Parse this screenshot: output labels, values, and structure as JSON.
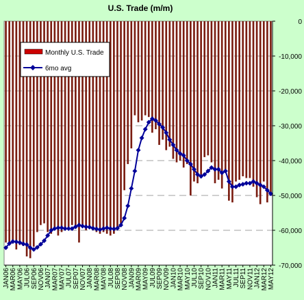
{
  "chart_data": {
    "type": "bar",
    "title": "U.S. Trade (m/m)",
    "xlabel": "",
    "ylabel": "",
    "ylim": [
      -70000,
      0
    ],
    "yticks": [
      0,
      -10000,
      -20000,
      -30000,
      -40000,
      -50000,
      -60000,
      -70000
    ],
    "ytick_labels": [
      "0",
      "-10,000",
      "-20,000",
      "-30,000",
      "-40,000",
      "-50,000",
      "-60,000",
      "-70,000"
    ],
    "legend_position": "top-left",
    "grid": {
      "horizontal_dashed": true
    },
    "colors": {
      "background": "#ccffcc",
      "plot_area": "#ffffff",
      "bar_fill": "#7a1c10",
      "legend_bar": "#cc0000",
      "line": "#000099",
      "grid": "#a0a0a0"
    },
    "categories": [
      "JAN06",
      "FEB06",
      "MAR06",
      "APR06",
      "MAY06",
      "JUN06",
      "JUL06",
      "AUG06",
      "SEP06",
      "OCT06",
      "NOV06",
      "DEC06",
      "JAN07",
      "FEB07",
      "MAR07",
      "APR07",
      "MAY07",
      "JUN07",
      "JUL07",
      "AUG07",
      "SEP07",
      "OCT07",
      "NOV07",
      "DEC07",
      "JAN08",
      "FEB08",
      "MAR08",
      "APR08",
      "MAY08",
      "JUN08",
      "JUL08",
      "AUG08",
      "SEP08",
      "OCT08",
      "NOV08",
      "DEC08",
      "JAN09",
      "FEB09",
      "MAR09",
      "APR09",
      "MAY09",
      "JUN09",
      "JUL09",
      "AUG09",
      "SEP09",
      "OCT09",
      "NOV09",
      "DEC09",
      "JAN10",
      "FEB10",
      "MAR10",
      "APR10",
      "MAY10",
      "JUN10",
      "JUL10",
      "AUG10",
      "SEP10",
      "OCT10",
      "NOV10",
      "DEC10",
      "JAN11",
      "FEB11",
      "MAR11",
      "APR11",
      "MAY11",
      "JUN11",
      "JUL11",
      "AUG11",
      "SEP11",
      "OCT11",
      "NOV11",
      "DEC11",
      "JAN12",
      "FEB12",
      "MAR12",
      "APR12",
      "MAY12"
    ],
    "x_tick_labels": [
      "JAN06",
      "MAR06",
      "MAY06",
      "JUL06",
      "SEP06",
      "NOV06",
      "JAN07",
      "MAR07",
      "MAY07",
      "JUL07",
      "SEP07",
      "NOV07",
      "JAN08",
      "MAR08",
      "MAY08",
      "JUL08",
      "SEP08",
      "NOV08",
      "JAN09",
      "MAR09",
      "MAY09",
      "JUL09",
      "SEP09",
      "NOV09",
      "JAN10",
      "MAR10",
      "MAY10",
      "JUL10",
      "SEP10",
      "NOV10",
      "JAN11",
      "MAR11",
      "MAY11",
      "JUL11",
      "SEP11",
      "NOV11",
      "JAN12",
      "MAR12",
      "MAY12"
    ],
    "series": [
      {
        "name": "Monthly U.S. Trade",
        "kind": "bar",
        "values": [
          -63500,
          -63500,
          -63800,
          -65500,
          -64200,
          -64500,
          -67500,
          -68000,
          -64700,
          -60500,
          -58500,
          -58000,
          -60500,
          -61000,
          -59500,
          -61500,
          -60500,
          -59700,
          -59000,
          -58500,
          -59500,
          -63500,
          -58500,
          -60000,
          -59000,
          -60000,
          -60500,
          -61000,
          -60500,
          -61000,
          -61500,
          -61000,
          -60000,
          -58000,
          -48500,
          -41000,
          -36500,
          -27000,
          -29000,
          -28500,
          -27000,
          -27500,
          -32000,
          -31000,
          -35500,
          -34000,
          -37000,
          -36000,
          -39500,
          -40500,
          -40000,
          -42000,
          -41000,
          -50000,
          -46000,
          -46500,
          -45000,
          -39000,
          -38500,
          -40500,
          -46500,
          -45500,
          -48000,
          -43500,
          -51500,
          -52000,
          -46000,
          -45500,
          -44500,
          -45000,
          -45000,
          -47500,
          -50500,
          -52500,
          -46000,
          -52000,
          -50000
        ]
      },
      {
        "name": "6mo avg",
        "kind": "line",
        "values": [
          -65000,
          -63800,
          -63200,
          -63300,
          -63500,
          -63900,
          -64100,
          -65000,
          -65500,
          -64900,
          -64000,
          -63000,
          -61500,
          -60000,
          -59500,
          -59300,
          -59300,
          -59500,
          -59500,
          -59500,
          -59000,
          -58500,
          -58800,
          -59000,
          -59100,
          -59400,
          -59600,
          -59800,
          -59500,
          -59300,
          -59500,
          -59600,
          -59400,
          -58500,
          -56500,
          -53000,
          -48000,
          -43000,
          -37000,
          -33500,
          -31000,
          -29000,
          -28000,
          -28500,
          -29500,
          -30500,
          -32000,
          -34000,
          -35500,
          -37000,
          -38000,
          -38500,
          -40000,
          -41000,
          -42500,
          -44000,
          -44500,
          -44000,
          -43000,
          -42000,
          -42500,
          -42500,
          -43500,
          -43000,
          -46000,
          -47500,
          -47500,
          -47000,
          -46800,
          -46500,
          -46500,
          -46000,
          -46500,
          -47000,
          -47500,
          -48500,
          -49500
        ]
      }
    ]
  }
}
